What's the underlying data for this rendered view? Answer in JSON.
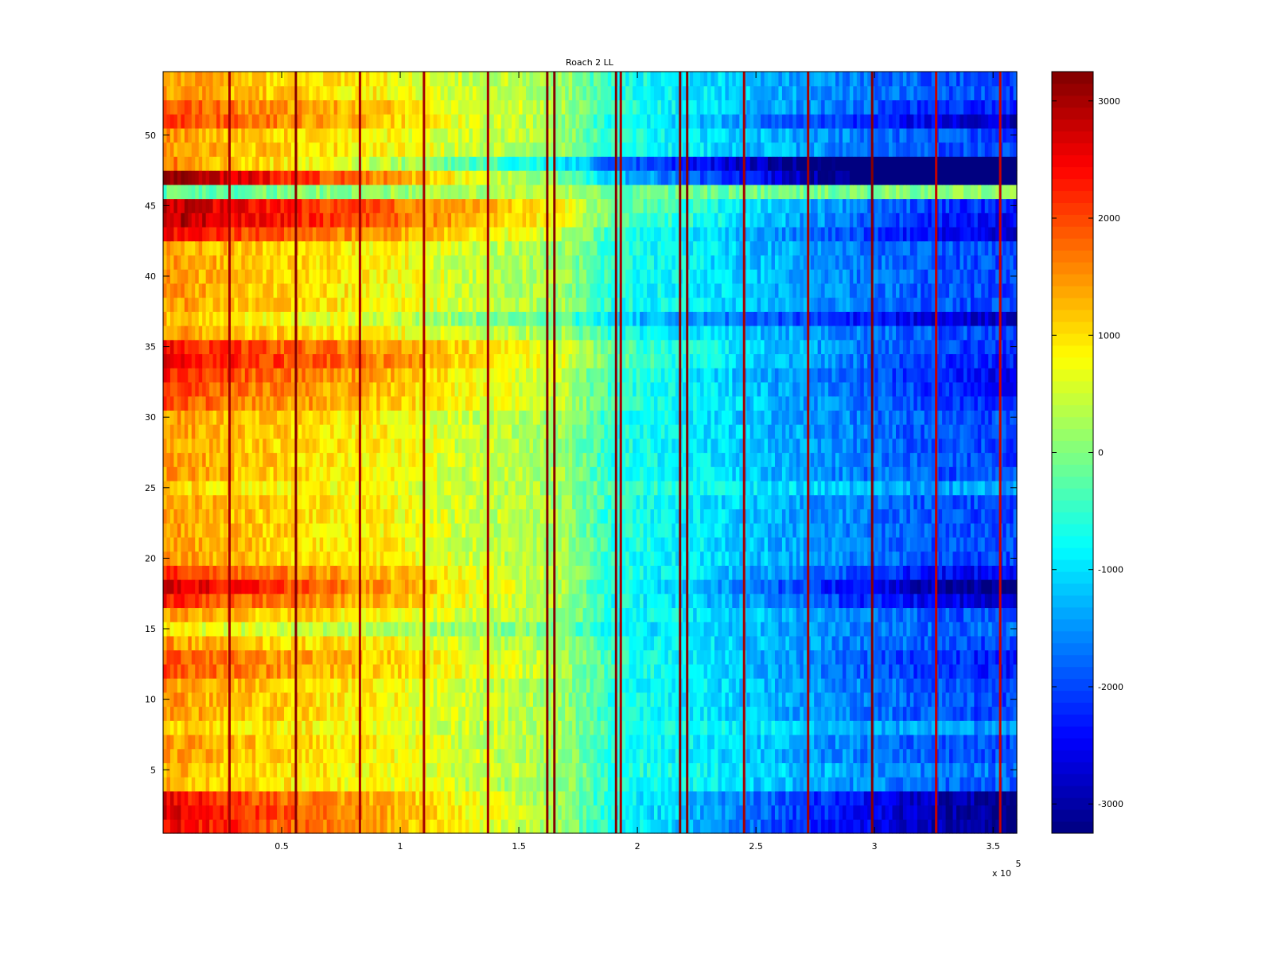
{
  "chart_data": {
    "type": "heatmap",
    "title": "Roach 2 LL",
    "xlabel": "",
    "ylabel": "",
    "x_exponent_label": "x 10",
    "x_exponent": "5",
    "xlim": [
      0,
      3.6
    ],
    "ylim": [
      0.5,
      54.5
    ],
    "xticks": [
      0.5,
      1,
      1.5,
      2,
      2.5,
      3,
      3.5
    ],
    "xtick_labels": [
      "0.5",
      "1",
      "1.5",
      "2",
      "2.5",
      "3",
      "3.5"
    ],
    "yticks": [
      5,
      10,
      15,
      20,
      25,
      30,
      35,
      40,
      45,
      50
    ],
    "ytick_labels": [
      "5",
      "10",
      "15",
      "20",
      "25",
      "30",
      "35",
      "40",
      "45",
      "50"
    ],
    "colormap": "jet",
    "clim": [
      -3250,
      3250
    ],
    "colorbar_ticks": [
      3000,
      2000,
      1000,
      0,
      -1000,
      -2000,
      -3000
    ],
    "colorbar_tick_labels": [
      "3000",
      "2000",
      "1000",
      "0",
      "-1000",
      "-2000",
      "-3000"
    ],
    "rows": 54,
    "x_profile": {
      "x": [
        0,
        0.25,
        0.5,
        0.75,
        1.0,
        1.25,
        1.5,
        1.7,
        1.9,
        2.1,
        2.25,
        2.5,
        2.75,
        3.0,
        3.25,
        3.6
      ],
      "value": [
        1500,
        1250,
        1100,
        950,
        800,
        500,
        350,
        150,
        -600,
        -800,
        -900,
        -1200,
        -1450,
        -1700,
        -1900,
        -2000
      ]
    },
    "row_offsets": [
      {
        "row": 1,
        "left": 1100,
        "right": -1300
      },
      {
        "row": 2,
        "left": 1200,
        "right": -1300
      },
      {
        "row": 3,
        "left": 1000,
        "right": -1200
      },
      {
        "row": 4,
        "left": -200,
        "right": 200
      },
      {
        "row": 5,
        "left": -150,
        "right": 300
      },
      {
        "row": 8,
        "left": -300,
        "right": 500
      },
      {
        "row": 12,
        "left": 500,
        "right": -300
      },
      {
        "row": 13,
        "left": 500,
        "right": -300
      },
      {
        "row": 15,
        "left": -700,
        "right": 200
      },
      {
        "row": 17,
        "left": 800,
        "right": -800
      },
      {
        "row": 18,
        "left": 1300,
        "right": -1300
      },
      {
        "row": 19,
        "left": 700,
        "right": -600
      },
      {
        "row": 25,
        "left": -400,
        "right": 600
      },
      {
        "row": 31,
        "left": 500,
        "right": -200
      },
      {
        "row": 32,
        "left": 600,
        "right": -300
      },
      {
        "row": 33,
        "left": 800,
        "right": -500
      },
      {
        "row": 34,
        "left": 1100,
        "right": -300
      },
      {
        "row": 35,
        "left": 900,
        "right": -200
      },
      {
        "row": 37,
        "left": -200,
        "right": -800
      },
      {
        "row": 43,
        "left": 1000,
        "right": -700
      },
      {
        "row": 44,
        "left": 1500,
        "right": -500
      },
      {
        "row": 45,
        "left": 1400,
        "right": -300
      },
      {
        "row": 46,
        "left": -1700,
        "right": 2300
      },
      {
        "row": 47,
        "left": 1800,
        "right": -2600
      },
      {
        "row": 48,
        "left": 200,
        "right": -2500
      },
      {
        "row": 51,
        "left": 700,
        "right": -900
      },
      {
        "row": 52,
        "left": 500,
        "right": -300
      }
    ],
    "vertical_lines": [
      {
        "x": 0.28,
        "value": 3000
      },
      {
        "x": 0.56,
        "value": 3200
      },
      {
        "x": 0.83,
        "value": 3000
      },
      {
        "x": 1.1,
        "value": 3000
      },
      {
        "x": 1.37,
        "value": 3000
      },
      {
        "x": 1.62,
        "value": 3200
      },
      {
        "x": 1.65,
        "value": 3200
      },
      {
        "x": 1.91,
        "value": 3200
      },
      {
        "x": 1.93,
        "value": 3000
      },
      {
        "x": 2.18,
        "value": 3200
      },
      {
        "x": 2.21,
        "value": 3200
      },
      {
        "x": 2.45,
        "value": 3000
      },
      {
        "x": 2.72,
        "value": 3000
      },
      {
        "x": 2.99,
        "value": 3200
      },
      {
        "x": 3.26,
        "value": 2800
      },
      {
        "x": 3.53,
        "value": 2800
      }
    ]
  }
}
